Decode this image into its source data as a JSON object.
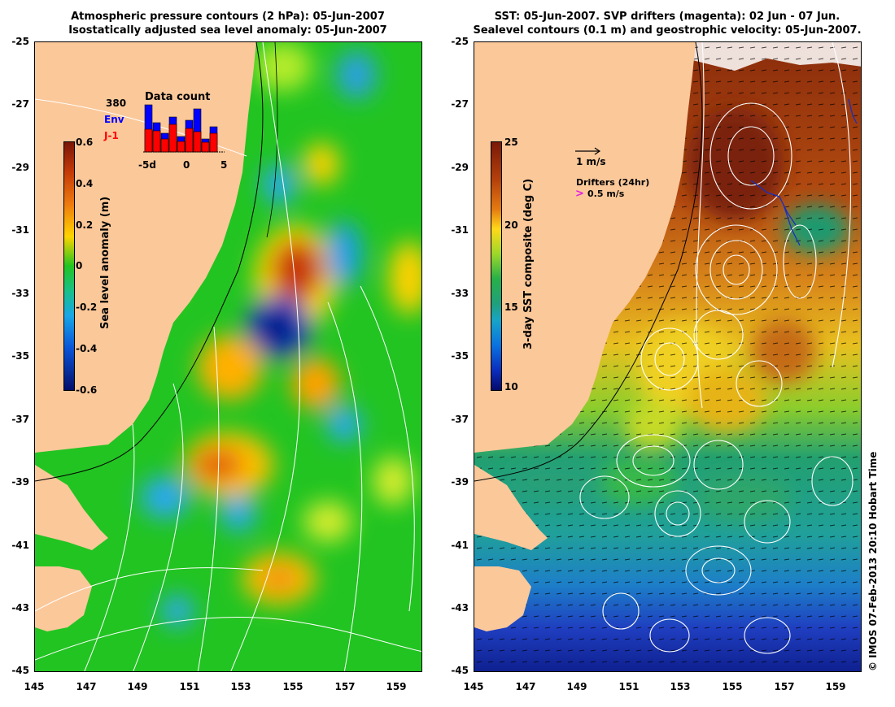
{
  "left_panel": {
    "title_line1": "Atmospheric pressure contours (2 hPa): 05-Jun-2007",
    "title_line2": "Isostatically adjusted sea level anomaly: 05-Jun-2007",
    "colorbar": {
      "label": "Sea level anomaly (m)",
      "ticks": [
        "0.6",
        "0.4",
        "0.2",
        "0",
        "-0.2",
        "-0.4",
        "-0.6"
      ],
      "range": [
        -0.6,
        0.6
      ]
    },
    "inset": {
      "title": "Data count",
      "max_label": "380",
      "legend_env": "Env",
      "legend_j1": "J-1",
      "x_ticks": [
        "-5d",
        "0",
        "5"
      ],
      "env_color": "#0000ff",
      "j1_color": "#ff0000"
    }
  },
  "right_panel": {
    "title_line1": "SST: 05-Jun-2007. SVP drifters (magenta): 02 Jun - 07 Jun.",
    "title_line2": "Sealevel contours (0.1 m) and geostrophic velocity: 05-Jun-2007.",
    "colorbar": {
      "label": "3-day SST composite (deg C)",
      "ticks": [
        "25",
        "20",
        "15",
        "10"
      ],
      "range": [
        10,
        25
      ]
    },
    "velocity_legend": "1 m/s",
    "drifters_legend_title": "Drifters (24hr)",
    "drifters_legend_value": "0.5 m/s"
  },
  "axes": {
    "lat_ticks": [
      "-25",
      "-27",
      "-29",
      "-31",
      "-33",
      "-35",
      "-37",
      "-39",
      "-41",
      "-43",
      "-45"
    ],
    "lon_ticks": [
      "145",
      "147",
      "149",
      "151",
      "153",
      "155",
      "157",
      "159"
    ],
    "lon_range": [
      145,
      160
    ],
    "lat_range": [
      -45,
      -25
    ]
  },
  "credit": "© IMOS 07-Feb-2013 20:10 Hobart Time",
  "colors": {
    "land": "#fbc89a",
    "sla_zero": "#22c422",
    "sst_warm": "#a8410f",
    "sst_cool": "#2c9d86",
    "sst_cold": "#1b34b8"
  }
}
